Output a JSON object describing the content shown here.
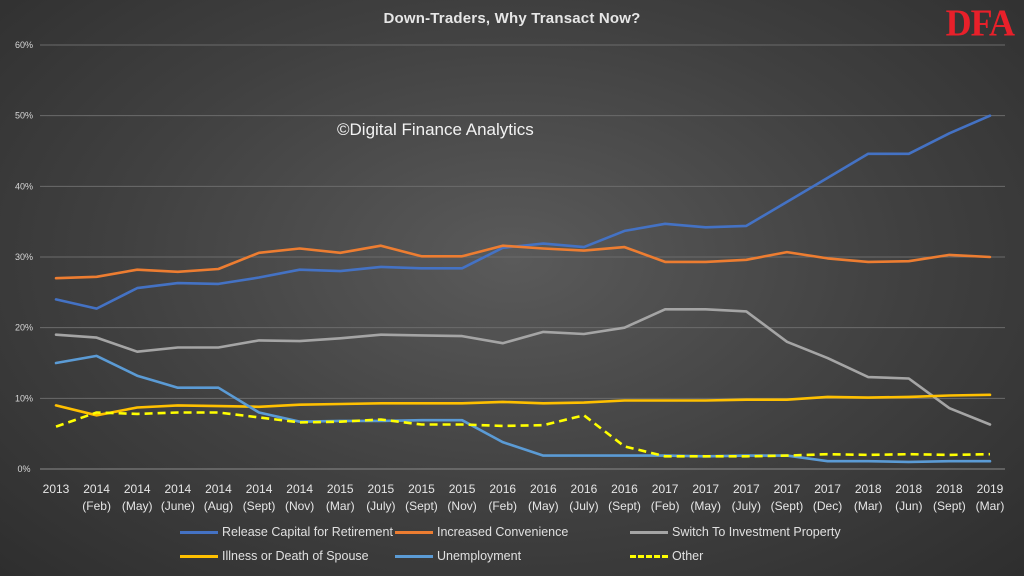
{
  "header": {
    "title": "Down-Traders, Why Transact Now?",
    "logo": "DFA"
  },
  "watermark": "©Digital Finance Analytics",
  "chart_data": {
    "type": "line",
    "title": "Down-Traders, Why Transact Now?",
    "xlabel": "",
    "ylabel": "",
    "ylim": [
      0,
      60
    ],
    "y_ticks": [
      "0%",
      "10%",
      "20%",
      "30%",
      "40%",
      "50%",
      "60%"
    ],
    "grid": true,
    "legend_position": "bottom",
    "categories": [
      [
        "2013",
        ""
      ],
      [
        "2014",
        "(Feb)"
      ],
      [
        "2014",
        "(May)"
      ],
      [
        "2014",
        "(June)"
      ],
      [
        "2014",
        "(Aug)"
      ],
      [
        "2014",
        "(Sept)"
      ],
      [
        "2014",
        "(Nov)"
      ],
      [
        "2015",
        "(Mar)"
      ],
      [
        "2015",
        "(July)"
      ],
      [
        "2015",
        "(Sept)"
      ],
      [
        "2015",
        "(Nov)"
      ],
      [
        "2016",
        "(Feb)"
      ],
      [
        "2016",
        "(May)"
      ],
      [
        "2016",
        "(July)"
      ],
      [
        "2016",
        "(Sept)"
      ],
      [
        "2017",
        "(Feb)"
      ],
      [
        "2017",
        "(May)"
      ],
      [
        "2017",
        "(July)"
      ],
      [
        "2017",
        "(Sept)"
      ],
      [
        "2017",
        "(Dec)"
      ],
      [
        "2018",
        "(Mar)"
      ],
      [
        "2018",
        "(Jun)"
      ],
      [
        "2018",
        "(Sept)"
      ],
      [
        "2019",
        "(Mar)"
      ]
    ],
    "series": [
      {
        "name": "Release Capital for Retirement",
        "color": "#4472c4",
        "dashed": false,
        "values": [
          24,
          22.7,
          25.6,
          26.3,
          26.2,
          27.1,
          28.2,
          28,
          28.6,
          28.4,
          28.4,
          31.3,
          31.9,
          31.4,
          33.7,
          34.7,
          34.2,
          34.4,
          37.8,
          41.2,
          44.6,
          44.6,
          47.5,
          50
        ]
      },
      {
        "name": "Increased Convenience",
        "color": "#ed7d31",
        "dashed": false,
        "values": [
          27,
          27.2,
          28.2,
          27.9,
          28.3,
          30.6,
          31.2,
          30.6,
          31.6,
          30.1,
          30.1,
          31.6,
          31.2,
          30.9,
          31.4,
          29.3,
          29.3,
          29.6,
          30.7,
          29.8,
          29.3,
          29.4,
          30.3,
          30
        ]
      },
      {
        "name": "Switch To Investment Property",
        "color": "#a5a5a5",
        "dashed": false,
        "values": [
          19,
          18.6,
          16.6,
          17.2,
          17.2,
          18.2,
          18.1,
          18.5,
          19,
          18.9,
          18.8,
          17.8,
          19.4,
          19.1,
          20,
          22.6,
          22.6,
          22.3,
          18,
          15.7,
          13,
          12.8,
          8.6,
          6.3
        ]
      },
      {
        "name": "Illness or Death of Spouse",
        "color": "#ffc000",
        "dashed": false,
        "values": [
          9,
          7.6,
          8.7,
          9,
          8.9,
          8.8,
          9.1,
          9.2,
          9.3,
          9.3,
          9.3,
          9.5,
          9.3,
          9.4,
          9.7,
          9.7,
          9.7,
          9.8,
          9.8,
          10.2,
          10.1,
          10.2,
          10.4,
          10.5
        ]
      },
      {
        "name": "Unemployment",
        "color": "#5b9bd5",
        "dashed": false,
        "values": [
          15,
          16,
          13.2,
          11.5,
          11.5,
          8,
          6.7,
          6.8,
          6.8,
          6.9,
          6.9,
          3.8,
          1.9,
          1.9,
          1.9,
          1.9,
          1.8,
          1.9,
          1.9,
          1.1,
          1.1,
          1,
          1.1,
          1.1
        ]
      },
      {
        "name": "Other",
        "color": "#ffff00",
        "dashed": true,
        "values": [
          6,
          8,
          7.8,
          8,
          8,
          7.3,
          6.6,
          6.7,
          7,
          6.3,
          6.3,
          6.1,
          6.2,
          7.6,
          3.2,
          1.8,
          1.8,
          1.8,
          1.9,
          2.1,
          2,
          2.1,
          2,
          2.1
        ]
      }
    ]
  }
}
